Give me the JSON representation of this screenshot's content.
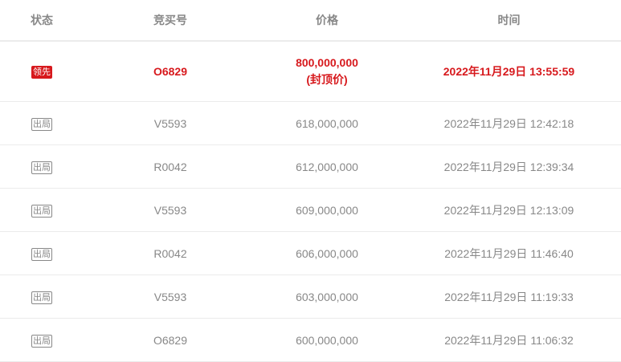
{
  "headers": {
    "status": "状态",
    "bid_no": "竞买号",
    "price": "价格",
    "time": "时间"
  },
  "colors": {
    "accent": "#d7191d",
    "text": "#888888"
  },
  "leading": {
    "status": "领先",
    "bid_no": "O6829",
    "price": "800,000,000",
    "price_note": "(封顶价)",
    "time": "2022年11月29日 13:55:59"
  },
  "rows": [
    {
      "status": "出局",
      "bid_no": "V5593",
      "price": "618,000,000",
      "time": "2022年11月29日 12:42:18"
    },
    {
      "status": "出局",
      "bid_no": "R0042",
      "price": "612,000,000",
      "time": "2022年11月29日 12:39:34"
    },
    {
      "status": "出局",
      "bid_no": "V5593",
      "price": "609,000,000",
      "time": "2022年11月29日 12:13:09"
    },
    {
      "status": "出局",
      "bid_no": "R0042",
      "price": "606,000,000",
      "time": "2022年11月29日 11:46:40"
    },
    {
      "status": "出局",
      "bid_no": "V5593",
      "price": "603,000,000",
      "time": "2022年11月29日 11:19:33"
    },
    {
      "status": "出局",
      "bid_no": "O6829",
      "price": "600,000,000",
      "time": "2022年11月29日 11:06:32"
    }
  ]
}
